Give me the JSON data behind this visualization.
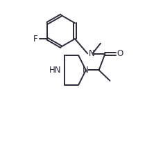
{
  "bg_color": "#ffffff",
  "line_color": "#2a2a3a",
  "text_color": "#2a2a3a",
  "figsize": [
    2.35,
    2.14
  ],
  "dpi": 100,
  "xlim": [
    -0.15,
    1.25
  ],
  "ylim": [
    -0.75,
    1.05
  ]
}
